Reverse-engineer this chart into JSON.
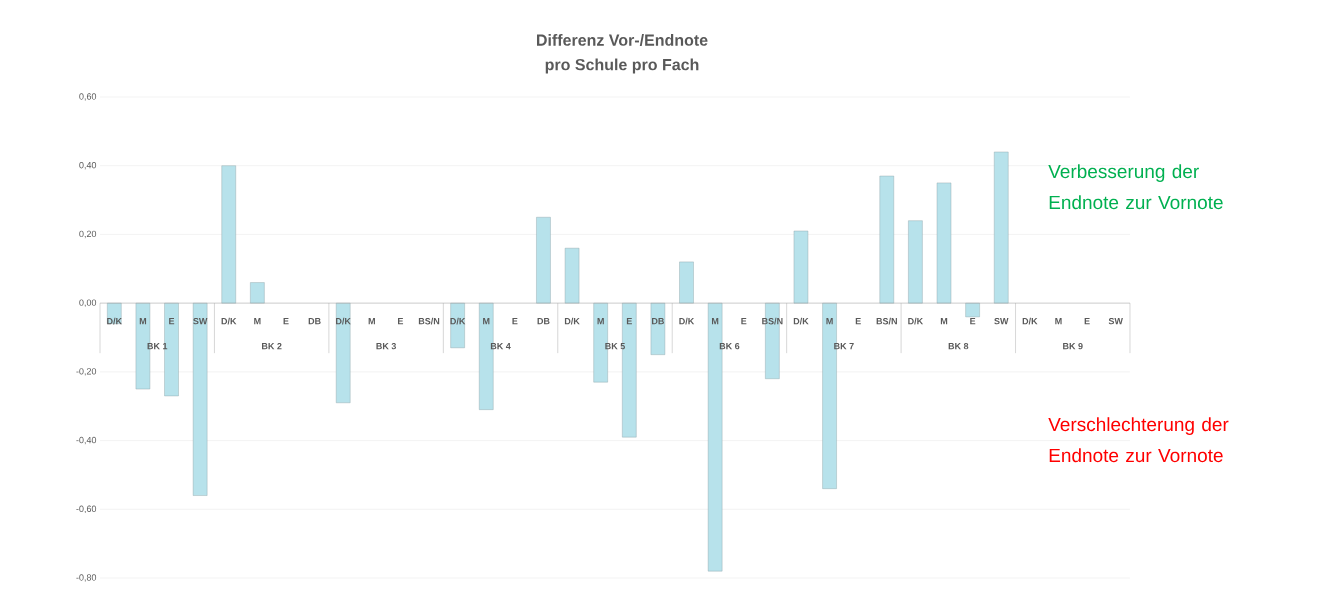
{
  "chart_data": {
    "type": "bar",
    "title": "Differenz Vor-/Endnote",
    "subtitle": "pro Schule pro Fach",
    "categories": [
      "D/K",
      "M",
      "E",
      "SW",
      "D/K",
      "M",
      "E",
      "DB",
      "D/K",
      "M",
      "E",
      "BS/N",
      "D/K",
      "M",
      "E",
      "DB",
      "D/K",
      "M",
      "E",
      "DB",
      "D/K",
      "M",
      "E",
      "BS/N",
      "D/K",
      "M",
      "E",
      "BS/N",
      "D/K",
      "M",
      "E",
      "SW",
      "D/K",
      "M",
      "E",
      "SW"
    ],
    "values": [
      -0.06,
      -0.25,
      -0.27,
      -0.56,
      0.4,
      0.06,
      null,
      null,
      -0.29,
      null,
      null,
      null,
      -0.13,
      -0.31,
      null,
      0.25,
      0.16,
      -0.23,
      -0.39,
      -0.15,
      0.12,
      -0.78,
      null,
      -0.22,
      0.21,
      -0.54,
      null,
      0.37,
      0.24,
      0.35,
      -0.04,
      0.44,
      null,
      null,
      null,
      null
    ],
    "color": "#b7e2eb",
    "ylim": [
      -0.8,
      0.6
    ],
    "yticks": [
      {
        "value": -0.8,
        "label": "-0,80"
      },
      {
        "value": -0.6,
        "label": "-0,60"
      },
      {
        "value": -0.4,
        "label": "-0,40"
      },
      {
        "value": -0.2,
        "label": "-0,20"
      },
      {
        "value": 0,
        "label": "0,00"
      },
      {
        "value": 0.2,
        "label": "0,20"
      },
      {
        "value": 0.4,
        "label": "0,40"
      },
      {
        "value": 0.6,
        "label": "0,60"
      }
    ],
    "grid": "y",
    "annotations": [
      "BK 1",
      "BK 2",
      "BK 3",
      "BK 4",
      "BK 5",
      "BK 6",
      "BK 7",
      "BK 8",
      "BK 9",
      "Verbesserung der Endnote zur Vornote",
      "Verschlechterung der Endnote zur Vornote"
    ]
  }
}
